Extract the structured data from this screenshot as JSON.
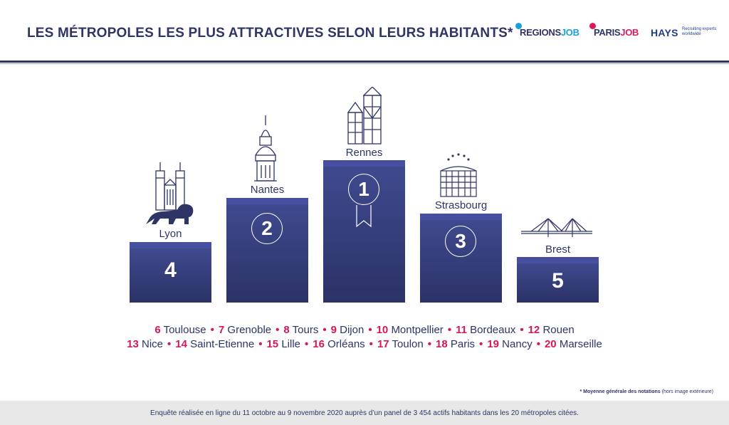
{
  "header": {
    "title": "LES MÉTROPOLES LES PLUS ATTRACTIVES SELON LEURS HABITANTS*",
    "logos": {
      "regionsjob_main": "REGIONS",
      "regionsjob_accent": "JOB",
      "parisjob_main": "PARIS",
      "parisjob_accent": "JOB",
      "hays": "HAYS",
      "hays_tagline": "Recruiting experts worldwide"
    }
  },
  "podium": [
    {
      "city": "Lyon",
      "rank": "4"
    },
    {
      "city": "Nantes",
      "rank": "2"
    },
    {
      "city": "Rennes",
      "rank": "1"
    },
    {
      "city": "Strasbourg",
      "rank": "3"
    },
    {
      "city": "Brest",
      "rank": "5"
    }
  ],
  "ranking": {
    "line1": [
      {
        "num": "6",
        "city": "Toulouse"
      },
      {
        "num": "7",
        "city": "Grenoble"
      },
      {
        "num": "8",
        "city": "Tours"
      },
      {
        "num": "9",
        "city": "Dijon"
      },
      {
        "num": "10",
        "city": "Montpellier"
      },
      {
        "num": "11",
        "city": "Bordeaux"
      },
      {
        "num": "12",
        "city": "Rouen"
      }
    ],
    "line2": [
      {
        "num": "13",
        "city": "Nice"
      },
      {
        "num": "14",
        "city": "Saint-Etienne"
      },
      {
        "num": "15",
        "city": "Lille"
      },
      {
        "num": "16",
        "city": "Orléans"
      },
      {
        "num": "17",
        "city": "Toulon"
      },
      {
        "num": "18",
        "city": "Paris"
      },
      {
        "num": "19",
        "city": "Nancy"
      },
      {
        "num": "20",
        "city": "Marseille"
      }
    ],
    "separator": "•"
  },
  "footnote": {
    "bold": "* Moyenne générale des notations",
    "normal": "(hors image extérieure)"
  },
  "footer": {
    "text": "Enquête réalisée en ligne du 11 octobre au 9 novembre 2020 auprès d’un panel de 3 454 actifs habitants dans les 20 métropoles citées."
  },
  "colors": {
    "navy": "#2e3466",
    "accent_pink": "#d6165a",
    "podium_top": "#3f4a8f",
    "podium_bottom": "#2b3266"
  },
  "icons": [
    "basilica-icon",
    "lion-icon",
    "cathedral-dome-icon",
    "timber-houses-icon",
    "ribbon-medal-icon",
    "parliament-stars-icon",
    "bridge-icon"
  ]
}
